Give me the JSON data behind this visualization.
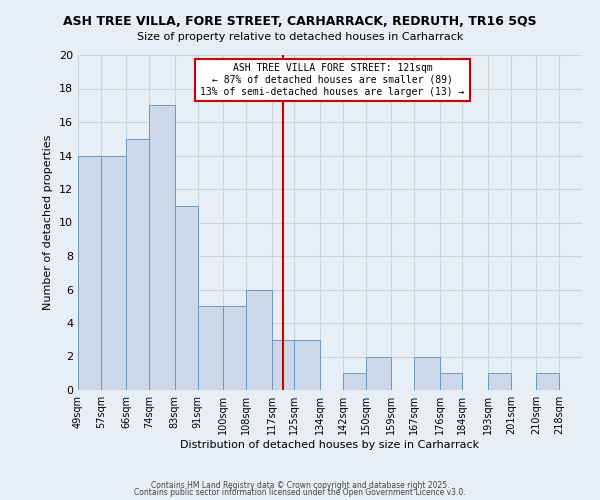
{
  "title1": "ASH TREE VILLA, FORE STREET, CARHARRACK, REDRUTH, TR16 5QS",
  "title2": "Size of property relative to detached houses in Carharrack",
  "xlabel": "Distribution of detached houses by size in Carharrack",
  "ylabel": "Number of detached properties",
  "bin_labels": [
    "49sqm",
    "57sqm",
    "66sqm",
    "74sqm",
    "83sqm",
    "91sqm",
    "100sqm",
    "108sqm",
    "117sqm",
    "125sqm",
    "134sqm",
    "142sqm",
    "150sqm",
    "159sqm",
    "167sqm",
    "176sqm",
    "184sqm",
    "193sqm",
    "201sqm",
    "210sqm",
    "218sqm"
  ],
  "bin_edges": [
    49,
    57,
    66,
    74,
    83,
    91,
    100,
    108,
    117,
    125,
    134,
    142,
    150,
    159,
    167,
    176,
    184,
    193,
    201,
    210,
    218,
    226
  ],
  "counts": [
    14,
    14,
    15,
    17,
    11,
    5,
    5,
    6,
    3,
    3,
    0,
    1,
    2,
    0,
    2,
    1,
    0,
    1,
    0,
    1,
    0
  ],
  "property_value": 121,
  "annotation_line1": "ASH TREE VILLA FORE STREET: 121sqm",
  "annotation_line2": "← 87% of detached houses are smaller (89)",
  "annotation_line3": "13% of semi-detached houses are larger (13) →",
  "bar_facecolor": "#cdd9e8",
  "bar_edgecolor": "#6a9abf",
  "bar_linewidth": 0.7,
  "vline_color": "#cc0000",
  "annotation_box_edgecolor": "#cc0000",
  "annotation_box_facecolor": "#ffffff",
  "grid_color": "#c8d4e0",
  "background_color": "#e8eef5",
  "ylim": [
    0,
    20
  ],
  "yticks": [
    0,
    2,
    4,
    6,
    8,
    10,
    12,
    14,
    16,
    18,
    20
  ],
  "footnote1": "Contains HM Land Registry data © Crown copyright and database right 2025.",
  "footnote2": "Contains public sector information licensed under the Open Government Licence v3.0."
}
